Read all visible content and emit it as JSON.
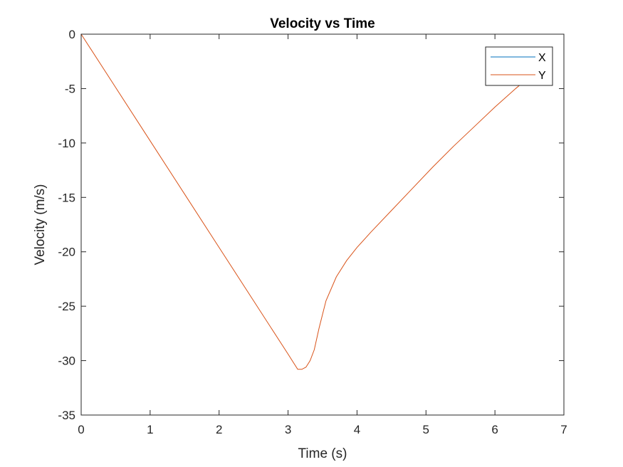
{
  "chart_data": {
    "type": "line",
    "title": "Velocity vs Time",
    "xlabel": "Time (s)",
    "ylabel": "Velocity (m/s)",
    "xlim": [
      0,
      7
    ],
    "ylim": [
      -35,
      0
    ],
    "xticks": [
      "0",
      "1",
      "2",
      "3",
      "4",
      "5",
      "6",
      "7"
    ],
    "yticks": [
      "0",
      "-5",
      "-10",
      "-15",
      "-20",
      "-25",
      "-30",
      "-35"
    ],
    "grid": false,
    "legend_position": "top-right",
    "series": [
      {
        "name": "X",
        "color": "#0072BD",
        "x": [
          0,
          6.45
        ],
        "y": [
          0,
          0
        ]
      },
      {
        "name": "Y",
        "color": "#D95319",
        "x": [
          0,
          0.5,
          1.0,
          1.5,
          2.0,
          2.5,
          3.0,
          3.14,
          3.2,
          3.26,
          3.32,
          3.38,
          3.45,
          3.55,
          3.7,
          3.85,
          4.0,
          4.2,
          4.5,
          4.8,
          5.1,
          5.4,
          5.7,
          6.0,
          6.3,
          6.45
        ],
        "y": [
          0,
          -4.9,
          -9.8,
          -14.7,
          -19.6,
          -24.5,
          -29.4,
          -30.8,
          -30.8,
          -30.6,
          -30.0,
          -29.0,
          -27.0,
          -24.5,
          -22.3,
          -20.8,
          -19.6,
          -18.2,
          -16.2,
          -14.2,
          -12.2,
          -10.3,
          -8.5,
          -6.7,
          -5.0,
          -4.2
        ]
      }
    ]
  }
}
